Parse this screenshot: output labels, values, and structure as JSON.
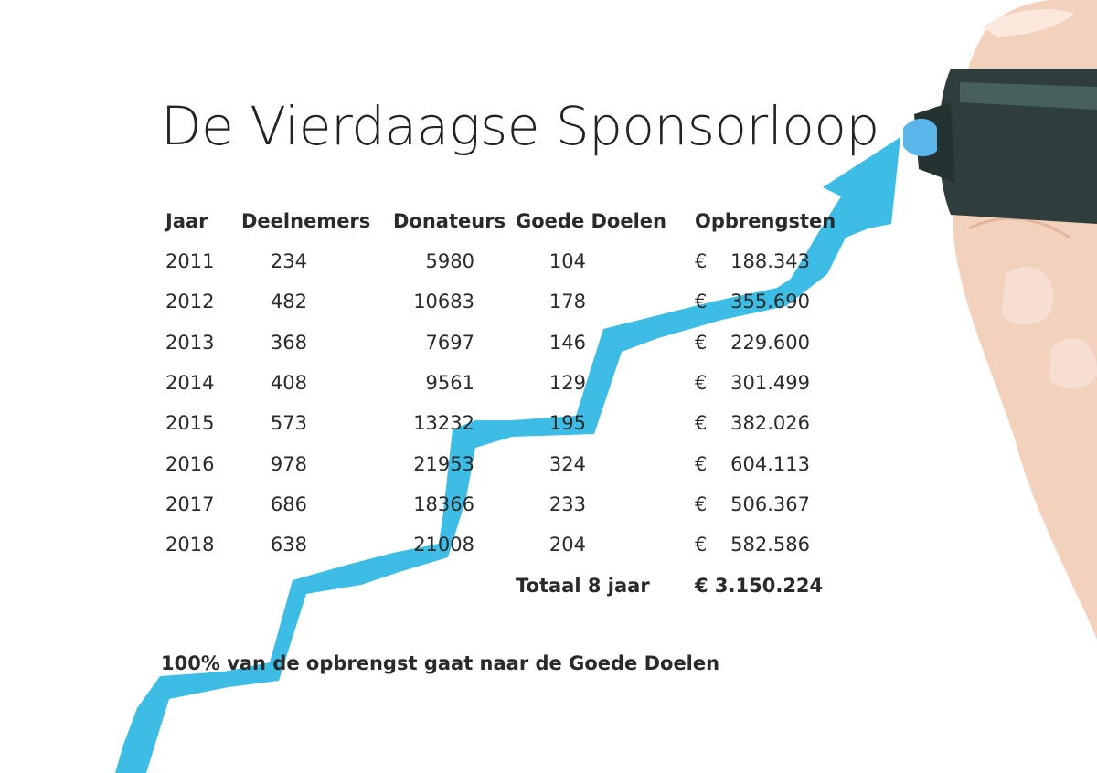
{
  "title": "De Vierdaagse Sponsorloop",
  "table": {
    "headers": [
      "Jaar",
      "Deelnemers",
      "Donateurs",
      "Goede Doelen",
      "Opbrengsten"
    ],
    "rows": [
      {
        "jaar": "2011",
        "deelnemers": "234",
        "donateurs": "5980",
        "goede_doelen": "104",
        "currency": "€",
        "opbrengsten": "188.343"
      },
      {
        "jaar": "2012",
        "deelnemers": "482",
        "donateurs": "10683",
        "goede_doelen": "178",
        "currency": "€",
        "opbrengsten": "355.690"
      },
      {
        "jaar": "2013",
        "deelnemers": "368",
        "donateurs": "7697",
        "goede_doelen": "146",
        "currency": "€",
        "opbrengsten": "229.600"
      },
      {
        "jaar": "2014",
        "deelnemers": "408",
        "donateurs": "9561",
        "goede_doelen": "129",
        "currency": "€",
        "opbrengsten": "301.499"
      },
      {
        "jaar": "2015",
        "deelnemers": "573",
        "donateurs": "13232",
        "goede_doelen": "195",
        "currency": "€",
        "opbrengsten": "382.026"
      },
      {
        "jaar": "2016",
        "deelnemers": "978",
        "donateurs": "21953",
        "goede_doelen": "324",
        "currency": "€",
        "opbrengsten": "604.113"
      },
      {
        "jaar": "2017",
        "deelnemers": "686",
        "donateurs": "18366",
        "goede_doelen": "233",
        "currency": "€",
        "opbrengsten": "506.367"
      },
      {
        "jaar": "2018",
        "deelnemers": "638",
        "donateurs": "21008",
        "goede_doelen": "204",
        "currency": "€",
        "opbrengsten": "582.586"
      }
    ],
    "total_label": "Totaal 8 jaar",
    "total_value": "€ 3.150.224"
  },
  "footnote": "100% van de opbrengst gaat naar de Goede Doelen",
  "colors": {
    "arrow": "#3dbde6",
    "marker_body": "#2f3d3c",
    "marker_tip": "#5ab6ea",
    "skin": "#f1cdb6",
    "text": "#2a2a2a"
  },
  "icons": [
    "rising-arrow-icon",
    "marker-pen-icon",
    "hand-icon"
  ]
}
